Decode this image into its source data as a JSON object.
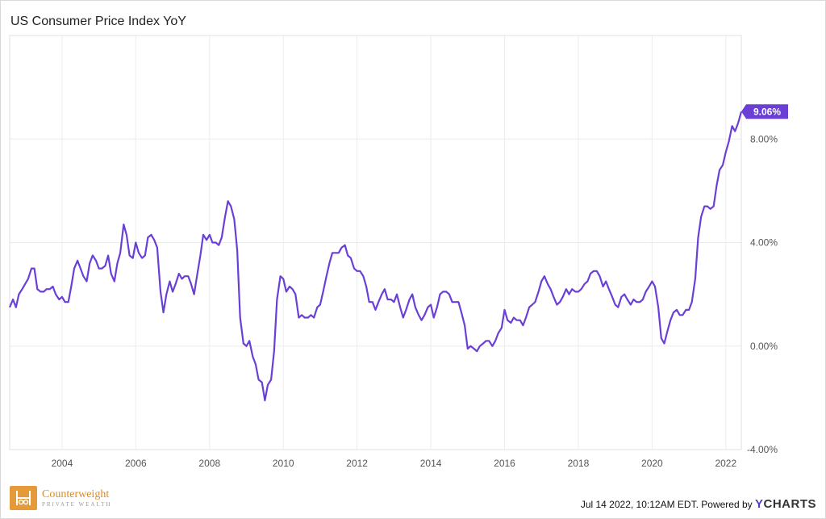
{
  "title": "US Consumer Price Index YoY",
  "footer": {
    "timestamp": "Jul 14 2022, 10:12AM EDT.",
    "powered_by": "Powered by",
    "brand": "YCHARTS"
  },
  "logo": {
    "name": "Counterweight",
    "subtitle": "PRIVATE WEALTH"
  },
  "colors": {
    "line": "#6a3fd6",
    "label_bg": "#6a3fd6",
    "grid": "#ececec",
    "axis_text": "#555555"
  },
  "chart_data": {
    "type": "line",
    "title": "US Consumer Price Index YoY",
    "xlabel": "",
    "ylabel": "",
    "xlim": [
      2002.58,
      2022.42
    ],
    "ylim": [
      -4,
      12
    ],
    "y_ticks": [
      -4,
      0,
      4,
      8
    ],
    "y_tick_labels": [
      "-4.00%",
      "0.00%",
      "4.00%",
      "8.00%"
    ],
    "x_ticks": [
      2004,
      2006,
      2008,
      2010,
      2012,
      2014,
      2016,
      2018,
      2020,
      2022
    ],
    "x_tick_labels": [
      "2004",
      "2006",
      "2008",
      "2010",
      "2012",
      "2014",
      "2016",
      "2018",
      "2020",
      "2022"
    ],
    "grid": true,
    "last_value_label": "9.06%",
    "series": [
      {
        "values": [
          [
            2002.58,
            1.5
          ],
          [
            2002.67,
            1.8
          ],
          [
            2002.75,
            1.5
          ],
          [
            2002.83,
            2.0
          ],
          [
            2002.92,
            2.2
          ],
          [
            2003.0,
            2.4
          ],
          [
            2003.08,
            2.6
          ],
          [
            2003.17,
            3.0
          ],
          [
            2003.25,
            3.0
          ],
          [
            2003.33,
            2.2
          ],
          [
            2003.42,
            2.1
          ],
          [
            2003.5,
            2.1
          ],
          [
            2003.58,
            2.2
          ],
          [
            2003.67,
            2.2
          ],
          [
            2003.75,
            2.3
          ],
          [
            2003.83,
            2.0
          ],
          [
            2003.92,
            1.8
          ],
          [
            2004.0,
            1.9
          ],
          [
            2004.08,
            1.7
          ],
          [
            2004.17,
            1.7
          ],
          [
            2004.25,
            2.3
          ],
          [
            2004.33,
            3.0
          ],
          [
            2004.42,
            3.3
          ],
          [
            2004.5,
            3.0
          ],
          [
            2004.58,
            2.7
          ],
          [
            2004.67,
            2.5
          ],
          [
            2004.75,
            3.2
          ],
          [
            2004.83,
            3.5
          ],
          [
            2004.92,
            3.3
          ],
          [
            2005.0,
            3.0
          ],
          [
            2005.08,
            3.0
          ],
          [
            2005.17,
            3.1
          ],
          [
            2005.25,
            3.5
          ],
          [
            2005.33,
            2.8
          ],
          [
            2005.42,
            2.5
          ],
          [
            2005.5,
            3.2
          ],
          [
            2005.58,
            3.6
          ],
          [
            2005.67,
            4.7
          ],
          [
            2005.75,
            4.3
          ],
          [
            2005.83,
            3.5
          ],
          [
            2005.92,
            3.4
          ],
          [
            2006.0,
            4.0
          ],
          [
            2006.08,
            3.6
          ],
          [
            2006.17,
            3.4
          ],
          [
            2006.25,
            3.5
          ],
          [
            2006.33,
            4.2
          ],
          [
            2006.42,
            4.3
          ],
          [
            2006.5,
            4.1
          ],
          [
            2006.58,
            3.8
          ],
          [
            2006.67,
            2.1
          ],
          [
            2006.75,
            1.3
          ],
          [
            2006.83,
            2.0
          ],
          [
            2006.92,
            2.5
          ],
          [
            2007.0,
            2.1
          ],
          [
            2007.08,
            2.4
          ],
          [
            2007.17,
            2.8
          ],
          [
            2007.25,
            2.6
          ],
          [
            2007.33,
            2.7
          ],
          [
            2007.42,
            2.7
          ],
          [
            2007.5,
            2.4
          ],
          [
            2007.58,
            2.0
          ],
          [
            2007.67,
            2.8
          ],
          [
            2007.75,
            3.5
          ],
          [
            2007.83,
            4.3
          ],
          [
            2007.92,
            4.1
          ],
          [
            2008.0,
            4.3
          ],
          [
            2008.08,
            4.0
          ],
          [
            2008.17,
            4.0
          ],
          [
            2008.25,
            3.9
          ],
          [
            2008.33,
            4.2
          ],
          [
            2008.42,
            5.0
          ],
          [
            2008.5,
            5.6
          ],
          [
            2008.58,
            5.4
          ],
          [
            2008.67,
            4.9
          ],
          [
            2008.75,
            3.7
          ],
          [
            2008.83,
            1.1
          ],
          [
            2008.92,
            0.1
          ],
          [
            2009.0,
            0.0
          ],
          [
            2009.08,
            0.2
          ],
          [
            2009.17,
            -0.4
          ],
          [
            2009.25,
            -0.7
          ],
          [
            2009.33,
            -1.3
          ],
          [
            2009.42,
            -1.4
          ],
          [
            2009.5,
            -2.1
          ],
          [
            2009.58,
            -1.5
          ],
          [
            2009.67,
            -1.3
          ],
          [
            2009.75,
            -0.2
          ],
          [
            2009.83,
            1.8
          ],
          [
            2009.92,
            2.7
          ],
          [
            2010.0,
            2.6
          ],
          [
            2010.08,
            2.1
          ],
          [
            2010.17,
            2.3
          ],
          [
            2010.25,
            2.2
          ],
          [
            2010.33,
            2.0
          ],
          [
            2010.42,
            1.1
          ],
          [
            2010.5,
            1.2
          ],
          [
            2010.58,
            1.1
          ],
          [
            2010.67,
            1.1
          ],
          [
            2010.75,
            1.2
          ],
          [
            2010.83,
            1.1
          ],
          [
            2010.92,
            1.5
          ],
          [
            2011.0,
            1.6
          ],
          [
            2011.08,
            2.1
          ],
          [
            2011.17,
            2.7
          ],
          [
            2011.25,
            3.2
          ],
          [
            2011.33,
            3.6
          ],
          [
            2011.42,
            3.6
          ],
          [
            2011.5,
            3.6
          ],
          [
            2011.58,
            3.8
          ],
          [
            2011.67,
            3.9
          ],
          [
            2011.75,
            3.5
          ],
          [
            2011.83,
            3.4
          ],
          [
            2011.92,
            3.0
          ],
          [
            2012.0,
            2.9
          ],
          [
            2012.08,
            2.9
          ],
          [
            2012.17,
            2.7
          ],
          [
            2012.25,
            2.3
          ],
          [
            2012.33,
            1.7
          ],
          [
            2012.42,
            1.7
          ],
          [
            2012.5,
            1.4
          ],
          [
            2012.58,
            1.7
          ],
          [
            2012.67,
            2.0
          ],
          [
            2012.75,
            2.2
          ],
          [
            2012.83,
            1.8
          ],
          [
            2012.92,
            1.8
          ],
          [
            2013.0,
            1.7
          ],
          [
            2013.08,
            2.0
          ],
          [
            2013.17,
            1.5
          ],
          [
            2013.25,
            1.1
          ],
          [
            2013.33,
            1.4
          ],
          [
            2013.42,
            1.8
          ],
          [
            2013.5,
            2.0
          ],
          [
            2013.58,
            1.5
          ],
          [
            2013.67,
            1.2
          ],
          [
            2013.75,
            1.0
          ],
          [
            2013.83,
            1.2
          ],
          [
            2013.92,
            1.5
          ],
          [
            2014.0,
            1.6
          ],
          [
            2014.08,
            1.1
          ],
          [
            2014.17,
            1.5
          ],
          [
            2014.25,
            2.0
          ],
          [
            2014.33,
            2.1
          ],
          [
            2014.42,
            2.1
          ],
          [
            2014.5,
            2.0
          ],
          [
            2014.58,
            1.7
          ],
          [
            2014.67,
            1.7
          ],
          [
            2014.75,
            1.7
          ],
          [
            2014.83,
            1.3
          ],
          [
            2014.92,
            0.8
          ],
          [
            2015.0,
            -0.1
          ],
          [
            2015.08,
            0.0
          ],
          [
            2015.17,
            -0.1
          ],
          [
            2015.25,
            -0.2
          ],
          [
            2015.33,
            0.0
          ],
          [
            2015.42,
            0.1
          ],
          [
            2015.5,
            0.2
          ],
          [
            2015.58,
            0.2
          ],
          [
            2015.67,
            0.0
          ],
          [
            2015.75,
            0.2
          ],
          [
            2015.83,
            0.5
          ],
          [
            2015.92,
            0.7
          ],
          [
            2016.0,
            1.4
          ],
          [
            2016.08,
            1.0
          ],
          [
            2016.17,
            0.9
          ],
          [
            2016.25,
            1.1
          ],
          [
            2016.33,
            1.0
          ],
          [
            2016.42,
            1.0
          ],
          [
            2016.5,
            0.8
          ],
          [
            2016.58,
            1.1
          ],
          [
            2016.67,
            1.5
          ],
          [
            2016.75,
            1.6
          ],
          [
            2016.83,
            1.7
          ],
          [
            2016.92,
            2.1
          ],
          [
            2017.0,
            2.5
          ],
          [
            2017.08,
            2.7
          ],
          [
            2017.17,
            2.4
          ],
          [
            2017.25,
            2.2
          ],
          [
            2017.33,
            1.9
          ],
          [
            2017.42,
            1.6
          ],
          [
            2017.5,
            1.7
          ],
          [
            2017.58,
            1.9
          ],
          [
            2017.67,
            2.2
          ],
          [
            2017.75,
            2.0
          ],
          [
            2017.83,
            2.2
          ],
          [
            2017.92,
            2.1
          ],
          [
            2018.0,
            2.1
          ],
          [
            2018.08,
            2.2
          ],
          [
            2018.17,
            2.4
          ],
          [
            2018.25,
            2.5
          ],
          [
            2018.33,
            2.8
          ],
          [
            2018.42,
            2.9
          ],
          [
            2018.5,
            2.9
          ],
          [
            2018.58,
            2.7
          ],
          [
            2018.67,
            2.3
          ],
          [
            2018.75,
            2.5
          ],
          [
            2018.83,
            2.2
          ],
          [
            2018.92,
            1.9
          ],
          [
            2019.0,
            1.6
          ],
          [
            2019.08,
            1.5
          ],
          [
            2019.17,
            1.9
          ],
          [
            2019.25,
            2.0
          ],
          [
            2019.33,
            1.8
          ],
          [
            2019.42,
            1.6
          ],
          [
            2019.5,
            1.8
          ],
          [
            2019.58,
            1.7
          ],
          [
            2019.67,
            1.7
          ],
          [
            2019.75,
            1.8
          ],
          [
            2019.83,
            2.1
          ],
          [
            2019.92,
            2.3
          ],
          [
            2020.0,
            2.5
          ],
          [
            2020.08,
            2.3
          ],
          [
            2020.17,
            1.5
          ],
          [
            2020.25,
            0.3
          ],
          [
            2020.33,
            0.1
          ],
          [
            2020.42,
            0.6
          ],
          [
            2020.5,
            1.0
          ],
          [
            2020.58,
            1.3
          ],
          [
            2020.67,
            1.4
          ],
          [
            2020.75,
            1.2
          ],
          [
            2020.83,
            1.2
          ],
          [
            2020.92,
            1.4
          ],
          [
            2021.0,
            1.4
          ],
          [
            2021.08,
            1.7
          ],
          [
            2021.17,
            2.6
          ],
          [
            2021.25,
            4.2
          ],
          [
            2021.33,
            5.0
          ],
          [
            2021.42,
            5.4
          ],
          [
            2021.5,
            5.4
          ],
          [
            2021.58,
            5.3
          ],
          [
            2021.67,
            5.4
          ],
          [
            2021.75,
            6.2
          ],
          [
            2021.83,
            6.8
          ],
          [
            2021.92,
            7.0
          ],
          [
            2022.0,
            7.5
          ],
          [
            2022.08,
            7.9
          ],
          [
            2022.17,
            8.5
          ],
          [
            2022.25,
            8.3
          ],
          [
            2022.33,
            8.6
          ],
          [
            2022.42,
            9.06
          ]
        ]
      }
    ]
  }
}
